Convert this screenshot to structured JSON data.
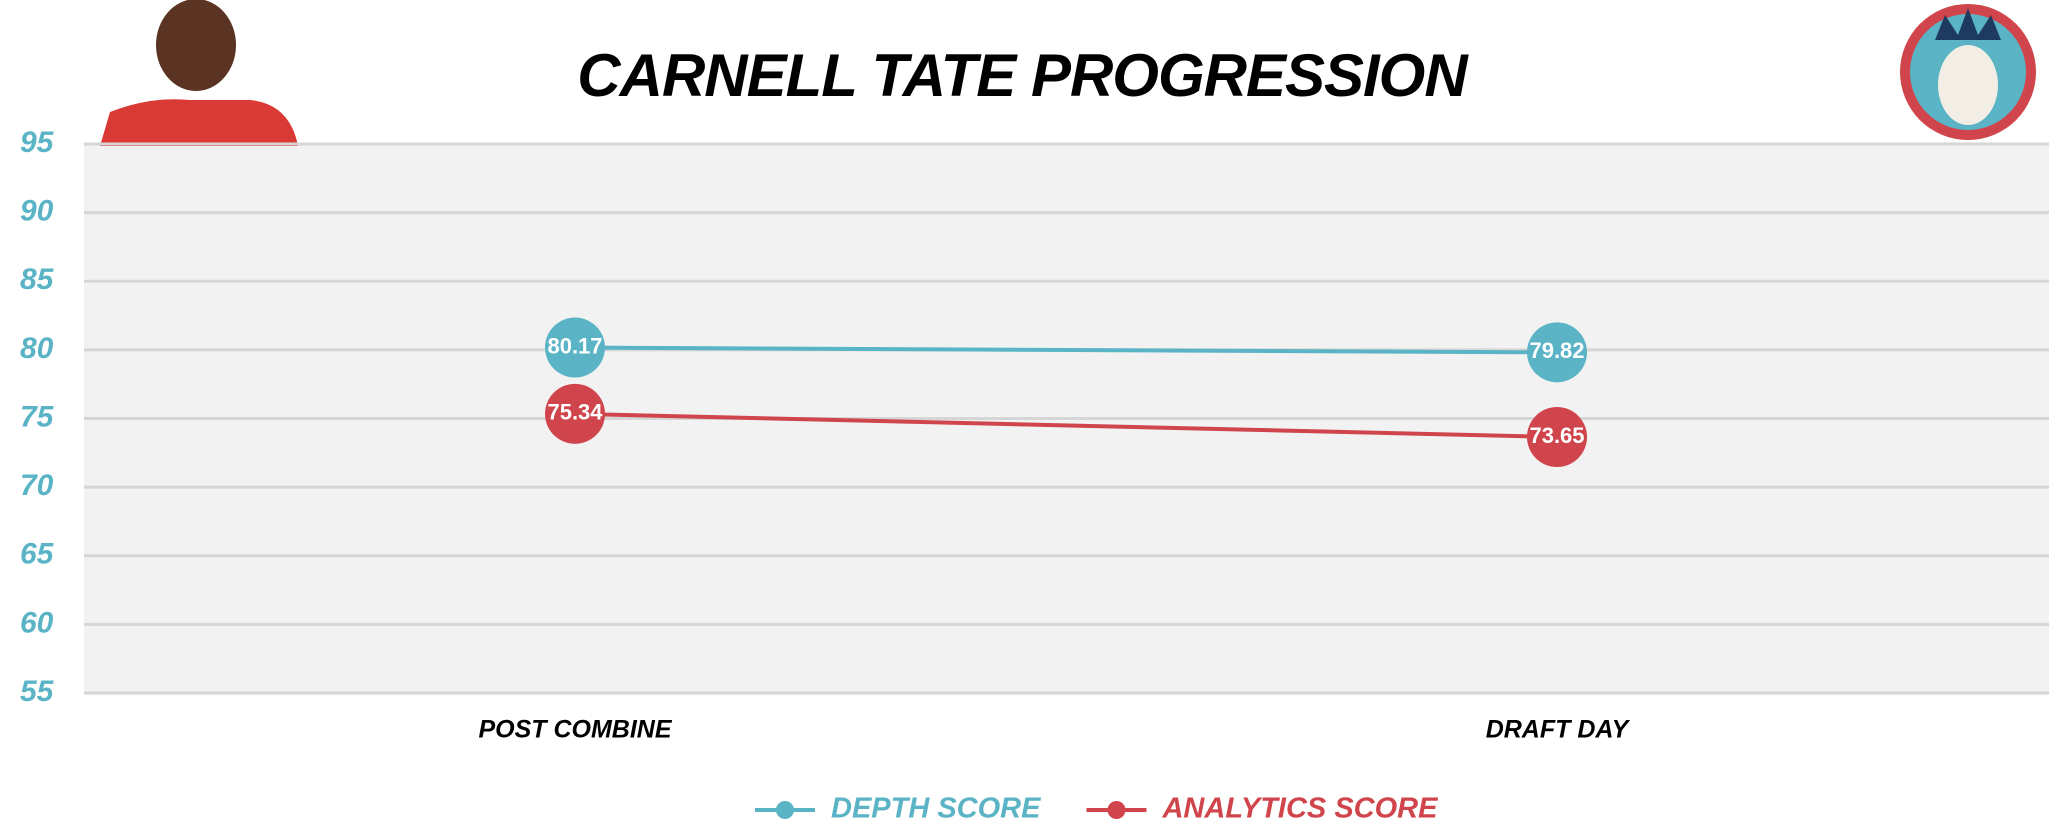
{
  "chart_data": {
    "type": "line",
    "title": "CARNELL TATE PROGRESSION",
    "categories": [
      "POST COMBINE",
      "DRAFT DAY"
    ],
    "series": [
      {
        "name": "DEPTH SCORE",
        "color": "#5ab4c5",
        "values": [
          80.17,
          79.82
        ]
      },
      {
        "name": "ANALYTICS SCORE",
        "color": "#d0454c",
        "values": [
          75.34,
          73.65
        ]
      }
    ],
    "ylim": [
      55,
      95
    ],
    "yticks": [
      55,
      60,
      65,
      70,
      75,
      80,
      85,
      90,
      95
    ],
    "grid": true
  }
}
